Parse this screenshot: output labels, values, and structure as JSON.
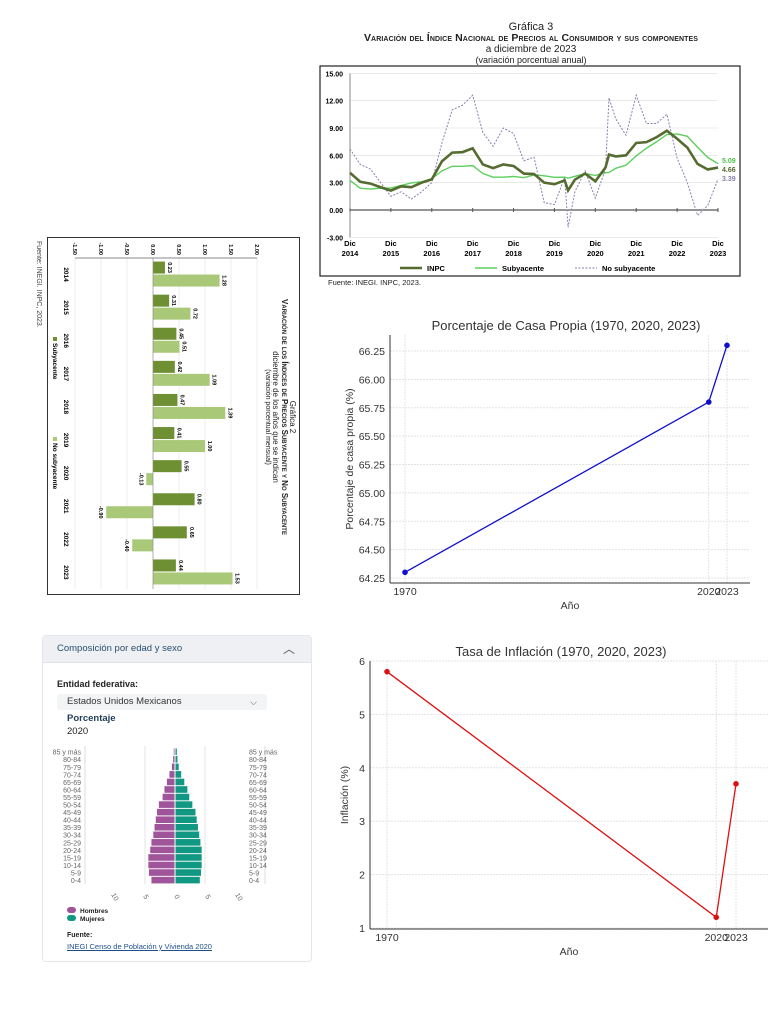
{
  "grafica3": {
    "label": "Gráfica 3",
    "title": "Variación del Índice Nacional de Precios al Consumidor y sus componentes",
    "subtitle": "a diciembre de 2023",
    "unit": "(variación porcentual anual)",
    "source": "Fuente: INEGI. INPC, 2023."
  },
  "grafica2": {
    "label": "Gráfica 2",
    "title": "Variación de los Índices de Precios Subyacente y No Subyacente",
    "subtitle": "diciembre de los años que se indican",
    "unit": "(variación porcentual mensual)",
    "source": "Fuente: INEGI. INPC, 2023."
  },
  "panel": {
    "header": "Composición por edad y sexo",
    "entity_label": "Entidad federativa:",
    "entity_value": "Estados Unidos Mexicanos",
    "measure": "Porcentaje",
    "year": "2020",
    "legend": [
      "Hombres",
      "Mujeres"
    ],
    "source_label": "Fuente:",
    "source_link": "INEGI Censo de Población y Vivienda 2020",
    "colors": {
      "hombres": "#a0549a",
      "mujeres": "#109882"
    }
  },
  "chart_data": [
    {
      "type": "line",
      "title": "Variación del Índice Nacional de Precios al Consumidor y sus componentes",
      "ylim": [
        -3,
        15
      ],
      "yticks": [
        "15.00",
        "12.00",
        "9.00",
        "6.00",
        "3.00",
        "0.00",
        "-3.00"
      ],
      "xticks": [
        "Dic 2014",
        "Dic 2015",
        "Dic 2016",
        "Dic 2017",
        "Dic 2018",
        "Dic 2019",
        "Dic 2020",
        "Dic 2021",
        "Dic 2022",
        "Dic 2023"
      ],
      "x": [
        "2014-12",
        "2015-03",
        "2015-06",
        "2015-09",
        "2015-12",
        "2016-03",
        "2016-06",
        "2016-09",
        "2016-12",
        "2017-03",
        "2017-06",
        "2017-09",
        "2017-12",
        "2018-03",
        "2018-06",
        "2018-09",
        "2018-12",
        "2019-03",
        "2019-06",
        "2019-09",
        "2019-12",
        "2020-03",
        "2020-04",
        "2020-06",
        "2020-09",
        "2020-12",
        "2021-03",
        "2021-04",
        "2021-06",
        "2021-09",
        "2021-12",
        "2022-03",
        "2022-06",
        "2022-09",
        "2022-12",
        "2023-03",
        "2023-06",
        "2023-09",
        "2023-12"
      ],
      "series": [
        {
          "name": "INPC",
          "color": "#556b2f",
          "values": [
            4.08,
            3.1,
            2.9,
            2.5,
            2.13,
            2.6,
            2.5,
            3.0,
            3.36,
            5.35,
            6.3,
            6.35,
            6.77,
            5.0,
            4.6,
            5.0,
            4.83,
            4.0,
            3.95,
            3.0,
            2.83,
            3.25,
            2.15,
            3.33,
            4.0,
            3.15,
            4.67,
            6.08,
            5.88,
            6.0,
            7.36,
            7.45,
            8.0,
            8.7,
            7.82,
            6.85,
            5.06,
            4.45,
            4.66
          ]
        },
        {
          "name": "Subyacente",
          "color": "#5ccf5c",
          "values": [
            3.24,
            2.4,
            2.3,
            2.4,
            2.41,
            2.7,
            2.97,
            3.1,
            3.44,
            4.3,
            4.8,
            4.8,
            4.87,
            4.0,
            3.6,
            3.6,
            3.68,
            3.55,
            3.85,
            3.75,
            3.59,
            3.6,
            3.5,
            3.7,
            3.99,
            3.8,
            4.1,
            4.12,
            4.58,
            4.92,
            5.94,
            6.78,
            7.49,
            8.28,
            8.35,
            8.09,
            6.89,
            5.76,
            5.09
          ]
        },
        {
          "name": "No subyacente",
          "color": "#8a7fb0",
          "values": [
            6.7,
            5.0,
            4.5,
            3.0,
            1.5,
            2.0,
            1.2,
            2.0,
            3.0,
            7.4,
            11.0,
            11.5,
            12.6,
            8.5,
            7.0,
            9.0,
            8.4,
            5.4,
            5.8,
            0.8,
            0.6,
            3.6,
            -1.9,
            2.0,
            4.3,
            1.3,
            4.5,
            12.3,
            10.0,
            8.2,
            12.6,
            9.5,
            9.5,
            10.5,
            5.7,
            3.0,
            -0.6,
            0.5,
            3.39
          ]
        }
      ],
      "end_labels": [
        "4.66",
        "5.09",
        "3.39"
      ],
      "legend": "bottom",
      "grid": true
    },
    {
      "type": "bar",
      "title": "Variación de los Índices de Precios Subyacente y No Subyacente",
      "categories": [
        "2014",
        "2015",
        "2016",
        "2017",
        "2018",
        "2019",
        "2020",
        "2021",
        "2022",
        "2023"
      ],
      "ylim": [
        -1.5,
        2.0
      ],
      "yticks": [
        "-1.50",
        "-1.00",
        "-0.50",
        "0.00",
        "0.50",
        "1.00",
        "1.50",
        "2.00"
      ],
      "series": [
        {
          "name": "Subyacente",
          "color": "#6f8f33",
          "values": [
            0.23,
            0.31,
            0.45,
            0.42,
            0.47,
            0.41,
            0.55,
            0.8,
            0.65,
            0.44
          ],
          "labels": [
            "0.23",
            "0.31",
            "0.45",
            "0.42",
            "0.47",
            "0.41",
            "0.55",
            "0.80",
            "0.65",
            "0.44"
          ]
        },
        {
          "name": "No subyacente",
          "color": "#a9c979",
          "values": [
            1.28,
            0.72,
            0.51,
            1.09,
            1.39,
            1.0,
            -0.13,
            -0.9,
            -0.4,
            1.53
          ],
          "labels": [
            "1.28",
            "0.72",
            "0.51",
            "1.09",
            "1.39",
            "1.00",
            "-0.13",
            "-0.90",
            "-0.40",
            "1.53"
          ]
        }
      ],
      "orientation": "rotated 90°",
      "legend": "bottom"
    },
    {
      "type": "line",
      "title": "Porcentaje de Casa Propia (1970, 2020, 2023)",
      "xlabel": "Año",
      "ylabel": "Porcentaje de casa propia (%)",
      "x": [
        1970,
        2020,
        2023
      ],
      "values": [
        64.3,
        65.8,
        66.3
      ],
      "yticks": [
        "64.25",
        "64.50",
        "64.75",
        "65.00",
        "65.25",
        "65.50",
        "65.75",
        "66.00",
        "66.25"
      ],
      "xticks": [
        "1970",
        "2020",
        "2023"
      ],
      "color": "#1010cc",
      "grid": true
    },
    {
      "type": "line",
      "title": "Tasa de Inflación (1970, 2020, 2023)",
      "xlabel": "Año",
      "ylabel": "Inflación (%)",
      "x": [
        1970,
        2020,
        2023
      ],
      "values": [
        5.8,
        1.2,
        3.7
      ],
      "yticks": [
        "1",
        "2",
        "3",
        "4",
        "5",
        "6"
      ],
      "xticks": [
        "1970",
        "2020",
        "2023"
      ],
      "color": "#dd1111",
      "grid": true
    },
    {
      "type": "bar",
      "title": "Composición por edad y sexo",
      "orientation": "population-pyramid",
      "categories": [
        "0-4",
        "5-9",
        "10-14",
        "15-19",
        "20-24",
        "25-29",
        "30-34",
        "35-39",
        "40-44",
        "45-49",
        "50-54",
        "55-59",
        "60-64",
        "65-69",
        "70-74",
        "75-79",
        "80-84",
        "85 y más"
      ],
      "xticks": [
        "10",
        "5",
        "0",
        "5",
        "10"
      ],
      "series": [
        {
          "name": "Hombres",
          "values": [
            3.8,
            4.2,
            4.3,
            4.3,
            4.0,
            3.8,
            3.5,
            3.3,
            3.1,
            2.9,
            2.6,
            2.0,
            1.7,
            1.3,
            0.9,
            0.5,
            0.3,
            0.2
          ]
        },
        {
          "name": "Mujeres",
          "values": [
            4.0,
            4.2,
            4.3,
            4.3,
            4.3,
            4.1,
            3.9,
            3.7,
            3.5,
            3.3,
            2.8,
            2.3,
            2.0,
            1.5,
            1.0,
            0.6,
            0.4,
            0.3
          ]
        }
      ],
      "legend": "bottom-left"
    }
  ]
}
